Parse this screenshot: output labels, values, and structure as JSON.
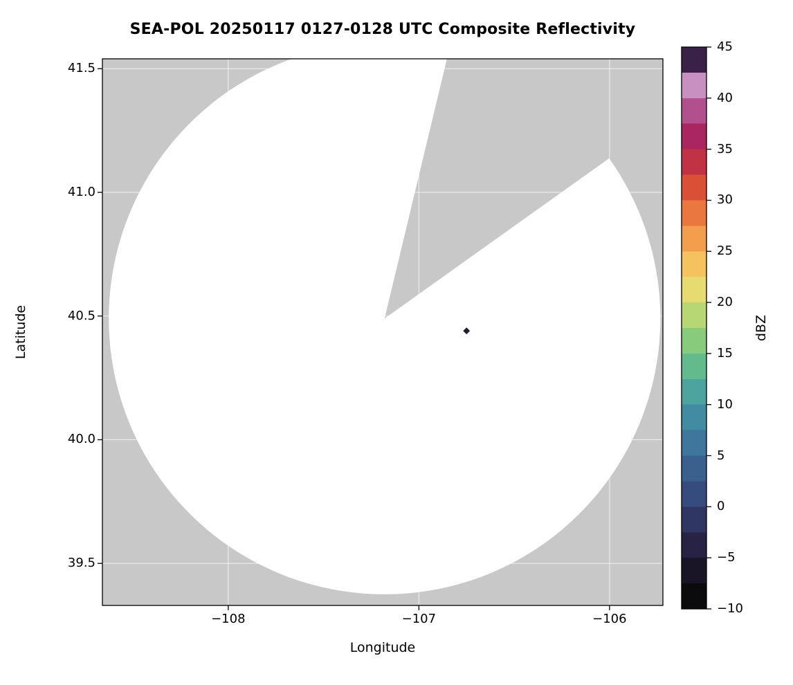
{
  "chart_data": {
    "type": "heatmap",
    "title": "SEA-POL 20250117 0127-0128 UTC Composite Reflectivity",
    "xlabel": "Longitude",
    "ylabel": "Latitude",
    "xlim": [
      -108.66,
      -105.72
    ],
    "ylim": [
      39.33,
      41.54
    ],
    "xticks": [
      -108,
      -107,
      -106
    ],
    "xtick_labels": [
      "−108",
      "−107",
      "−106"
    ],
    "yticks": [
      39.5,
      40.0,
      40.5,
      41.0,
      41.5
    ],
    "ytick_labels": [
      "39.5",
      "40.0",
      "40.5",
      "41.0",
      "41.5"
    ],
    "grid": true,
    "grid_color": "#ffffff",
    "background_color": "#ffffff",
    "nodata_color": "#c8c8c8",
    "scan_color": "#ffffff",
    "radar": {
      "center_lon": -107.18,
      "center_lat": 40.49,
      "radius_deg_lat": 1.115,
      "blocked_sector_azimuth_deg": [
        13.5,
        54.5
      ],
      "note": "white disk = radar scan coverage clipped at top axis; gray wedge = blocked sector with no data"
    },
    "echoes": [
      {
        "lon": -106.75,
        "lat": 40.44,
        "dbz": 45,
        "color": "#2a1833"
      }
    ],
    "colorbar": {
      "label": "dBZ",
      "min": -10,
      "max": 45,
      "ticks": [
        -10,
        -5,
        0,
        5,
        10,
        15,
        20,
        25,
        30,
        35,
        40,
        45
      ],
      "tick_labels": [
        "−10",
        "−5",
        "0",
        "5",
        "10",
        "15",
        "20",
        "25",
        "30",
        "35",
        "40",
        "45"
      ],
      "band_step_dbz": 2.5,
      "colors_bottom_to_top": [
        "#0b0b0d",
        "#1a1526",
        "#282345",
        "#303663",
        "#364b7e",
        "#3a6090",
        "#3e769e",
        "#428ca3",
        "#4da39d",
        "#63ba8d",
        "#89cb7d",
        "#b7d774",
        "#e5db70",
        "#f4c25e",
        "#f29e4d",
        "#e9773e",
        "#d95036",
        "#c13245",
        "#aa2660",
        "#b24f8d",
        "#c890c1",
        "#3a2147"
      ]
    }
  }
}
